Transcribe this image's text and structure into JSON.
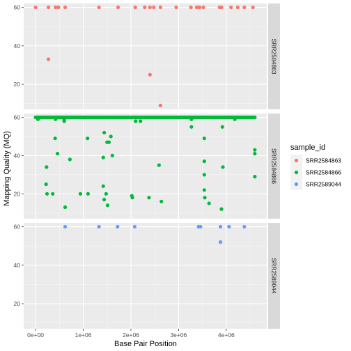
{
  "chart_data": {
    "type": "scatter",
    "xlabel": "Base Pair Position",
    "ylabel": "Mapping Quality (MQ)",
    "x_tick_labels": [
      "0e+00",
      "1e+06",
      "2e+06",
      "3e+06",
      "4e+06"
    ],
    "x_ticks": [
      0,
      1000000,
      2000000,
      3000000,
      4000000
    ],
    "y_tick_labels": [
      "20",
      "40",
      "60"
    ],
    "y_ticks": [
      20,
      40,
      60
    ],
    "xlim": [
      -250000,
      4850000
    ],
    "ylim": [
      7,
      62
    ],
    "grid": true,
    "facet_by": "sample_id",
    "legend": {
      "title": "sample_id",
      "position": "right",
      "entries": [
        {
          "label": "SRR2584863",
          "color": "#F8766D"
        },
        {
          "label": "SRR2584866",
          "color": "#00BA38"
        },
        {
          "label": "SRR2589044",
          "color": "#619CFF"
        }
      ]
    },
    "panels": [
      {
        "strip_label": "SRR2584863",
        "color": "#F8766D",
        "points": [
          [
            0,
            60
          ],
          [
            270000,
            60
          ],
          [
            420000,
            60
          ],
          [
            480000,
            60
          ],
          [
            620000,
            60
          ],
          [
            1330000,
            60
          ],
          [
            1730000,
            60
          ],
          [
            2090000,
            60
          ],
          [
            2290000,
            60
          ],
          [
            2400000,
            60
          ],
          [
            2480000,
            60
          ],
          [
            2620000,
            60
          ],
          [
            2950000,
            60
          ],
          [
            3260000,
            60
          ],
          [
            3380000,
            60
          ],
          [
            3440000,
            60
          ],
          [
            3520000,
            60
          ],
          [
            3860000,
            60
          ],
          [
            3900000,
            60
          ],
          [
            4100000,
            60
          ],
          [
            4240000,
            60
          ],
          [
            4380000,
            60
          ],
          [
            4560000,
            60
          ],
          [
            270000,
            33
          ],
          [
            2400000,
            25
          ],
          [
            2620000,
            9
          ]
        ]
      },
      {
        "strip_label": "SRR2584866",
        "color": "#00BA38",
        "dense_band": {
          "y": 60,
          "x_start": 0,
          "x_end": 4600000,
          "step": 20000
        },
        "points": [
          [
            50000,
            59
          ],
          [
            420000,
            59
          ],
          [
            600000,
            59
          ],
          [
            2100000,
            58
          ],
          [
            2200000,
            58
          ],
          [
            3270000,
            59
          ],
          [
            4180000,
            59
          ],
          [
            600000,
            58
          ],
          [
            1440000,
            52
          ],
          [
            1580000,
            50
          ],
          [
            410000,
            49
          ],
          [
            1090000,
            49
          ],
          [
            3540000,
            49
          ],
          [
            1500000,
            47
          ],
          [
            1540000,
            47
          ],
          [
            460000,
            41
          ],
          [
            1420000,
            39
          ],
          [
            1610000,
            40
          ],
          [
            720000,
            38
          ],
          [
            2590000,
            35
          ],
          [
            230000,
            34
          ],
          [
            3540000,
            37
          ],
          [
            3930000,
            34
          ],
          [
            3540000,
            30
          ],
          [
            4600000,
            43
          ],
          [
            4600000,
            41
          ],
          [
            4600000,
            29
          ],
          [
            220000,
            25
          ],
          [
            1420000,
            24
          ],
          [
            240000,
            20
          ],
          [
            360000,
            20
          ],
          [
            940000,
            20
          ],
          [
            1100000,
            20
          ],
          [
            1480000,
            20
          ],
          [
            3540000,
            22
          ],
          [
            2020000,
            19
          ],
          [
            2030000,
            18
          ],
          [
            2380000,
            18
          ],
          [
            3550000,
            18
          ],
          [
            1440000,
            17
          ],
          [
            2640000,
            16
          ],
          [
            3640000,
            15
          ],
          [
            1510000,
            14
          ],
          [
            620000,
            13
          ],
          [
            3900000,
            12
          ],
          [
            3270000,
            55
          ],
          [
            3920000,
            55
          ]
        ]
      },
      {
        "strip_label": "SRR2589044",
        "color": "#619CFF",
        "points": [
          [
            620000,
            60
          ],
          [
            1330000,
            60
          ],
          [
            1720000,
            60
          ],
          [
            2080000,
            60
          ],
          [
            3420000,
            60
          ],
          [
            3460000,
            60
          ],
          [
            3880000,
            60
          ],
          [
            4060000,
            60
          ],
          [
            4380000,
            60
          ],
          [
            3880000,
            52
          ]
        ]
      }
    ]
  }
}
